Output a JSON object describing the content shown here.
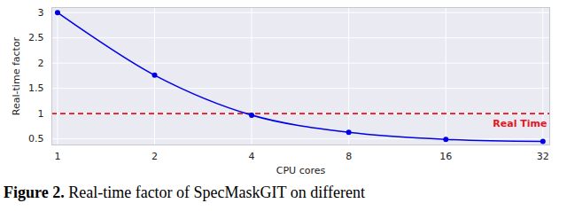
{
  "chart_data": {
    "type": "line",
    "caption": "Figure 2. Real-time factor of SpecMaskGIT on different",
    "x_label": "CPU cores",
    "y_label": "Real-time factor",
    "x": [
      1,
      2,
      4,
      8,
      16,
      32
    ],
    "series": [
      {
        "name": "SpecMaskGIT",
        "color": "#0000e6",
        "values": [
          3.0,
          1.76,
          0.97,
          0.63,
          0.49,
          0.45
        ],
        "marker": "circle"
      }
    ],
    "log": "x",
    "xlim": [
      0.96,
      33.6
    ],
    "xticks": [
      1,
      2,
      4,
      8,
      16,
      32
    ],
    "ylim": [
      0.38,
      3.1
    ],
    "yticks": [
      0.5,
      1,
      1.5,
      2,
      2.5,
      3
    ],
    "grid": true,
    "annotations": [
      {
        "text": "Real Time",
        "y": 1,
        "color": "#e8141c",
        "line_style": "dashed"
      }
    ]
  }
}
